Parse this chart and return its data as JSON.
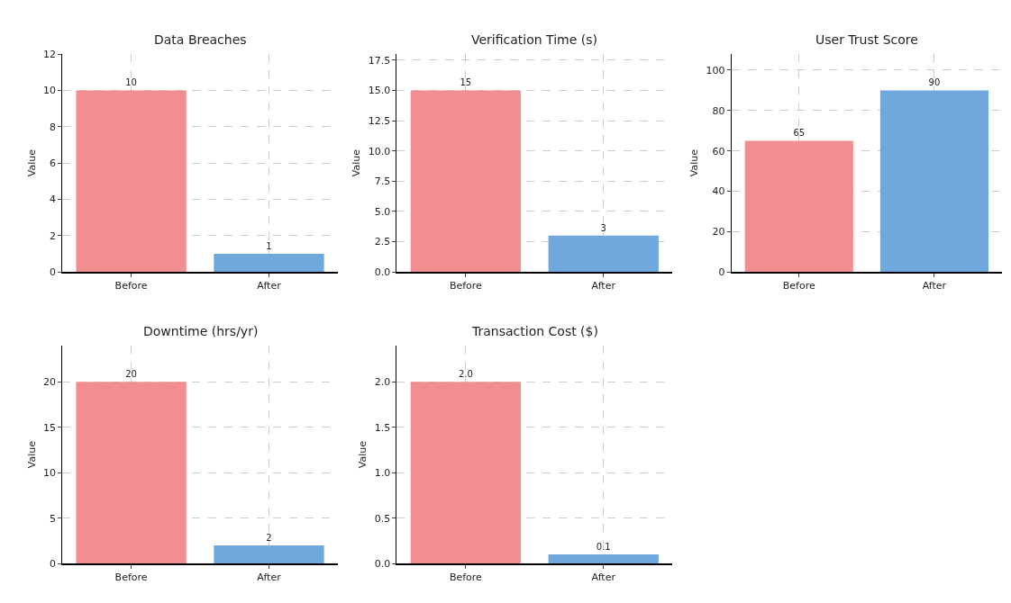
{
  "chart_data": [
    {
      "type": "bar",
      "title": "Data Breaches",
      "ylabel": "Value",
      "categories": [
        "Before",
        "After"
      ],
      "values": [
        10,
        1
      ],
      "colors": [
        "#f28e92",
        "#6fa8dc"
      ],
      "ylim": [
        0,
        12
      ],
      "yticks": [
        0,
        2,
        4,
        6,
        8,
        10,
        12
      ],
      "grid": true,
      "data_labels": true
    },
    {
      "type": "bar",
      "title": "Verification Time (s)",
      "ylabel": "Value",
      "categories": [
        "Before",
        "After"
      ],
      "values": [
        15,
        3
      ],
      "colors": [
        "#f28e92",
        "#6fa8dc"
      ],
      "ylim": [
        0,
        18
      ],
      "yticks": [
        {
          "value": 0,
          "label": "0.0"
        },
        {
          "value": 2.5,
          "label": "2.5"
        },
        {
          "value": 5,
          "label": "5.0"
        },
        {
          "value": 7.5,
          "label": "7.5"
        },
        {
          "value": 10,
          "label": "10.0"
        },
        {
          "value": 12.5,
          "label": "12.5"
        },
        {
          "value": 15,
          "label": "15.0"
        },
        {
          "value": 17.5,
          "label": "17.5"
        }
      ],
      "grid": true,
      "data_labels": true
    },
    {
      "type": "bar",
      "title": "User Trust Score",
      "ylabel": "Value",
      "categories": [
        "Before",
        "After"
      ],
      "values": [
        65,
        90
      ],
      "colors": [
        "#f28e92",
        "#6fa8dc"
      ],
      "ylim": [
        0,
        108
      ],
      "yticks": [
        0,
        20,
        40,
        60,
        80,
        100
      ],
      "grid": true,
      "data_labels": true
    },
    {
      "type": "bar",
      "title": "Downtime (hrs/yr)",
      "ylabel": "Value",
      "categories": [
        "Before",
        "After"
      ],
      "values": [
        20,
        2
      ],
      "colors": [
        "#f28e92",
        "#6fa8dc"
      ],
      "ylim": [
        0,
        24
      ],
      "yticks": [
        0,
        5,
        10,
        15,
        20
      ],
      "grid": true,
      "data_labels": true
    },
    {
      "type": "bar",
      "title": "Transaction Cost ($)",
      "ylabel": "Value",
      "categories": [
        "Before",
        "After"
      ],
      "values": [
        2,
        0.1
      ],
      "value_labels": [
        "2.0",
        "0.1"
      ],
      "colors": [
        "#f28e92",
        "#6fa8dc"
      ],
      "ylim": [
        0,
        2.4
      ],
      "yticks": [
        {
          "value": 0,
          "label": "0.0"
        },
        {
          "value": 0.5,
          "label": "0.5"
        },
        {
          "value": 1,
          "label": "1.0"
        },
        {
          "value": 1.5,
          "label": "1.5"
        },
        {
          "value": 2,
          "label": "2.0"
        }
      ],
      "grid": true
    }
  ]
}
